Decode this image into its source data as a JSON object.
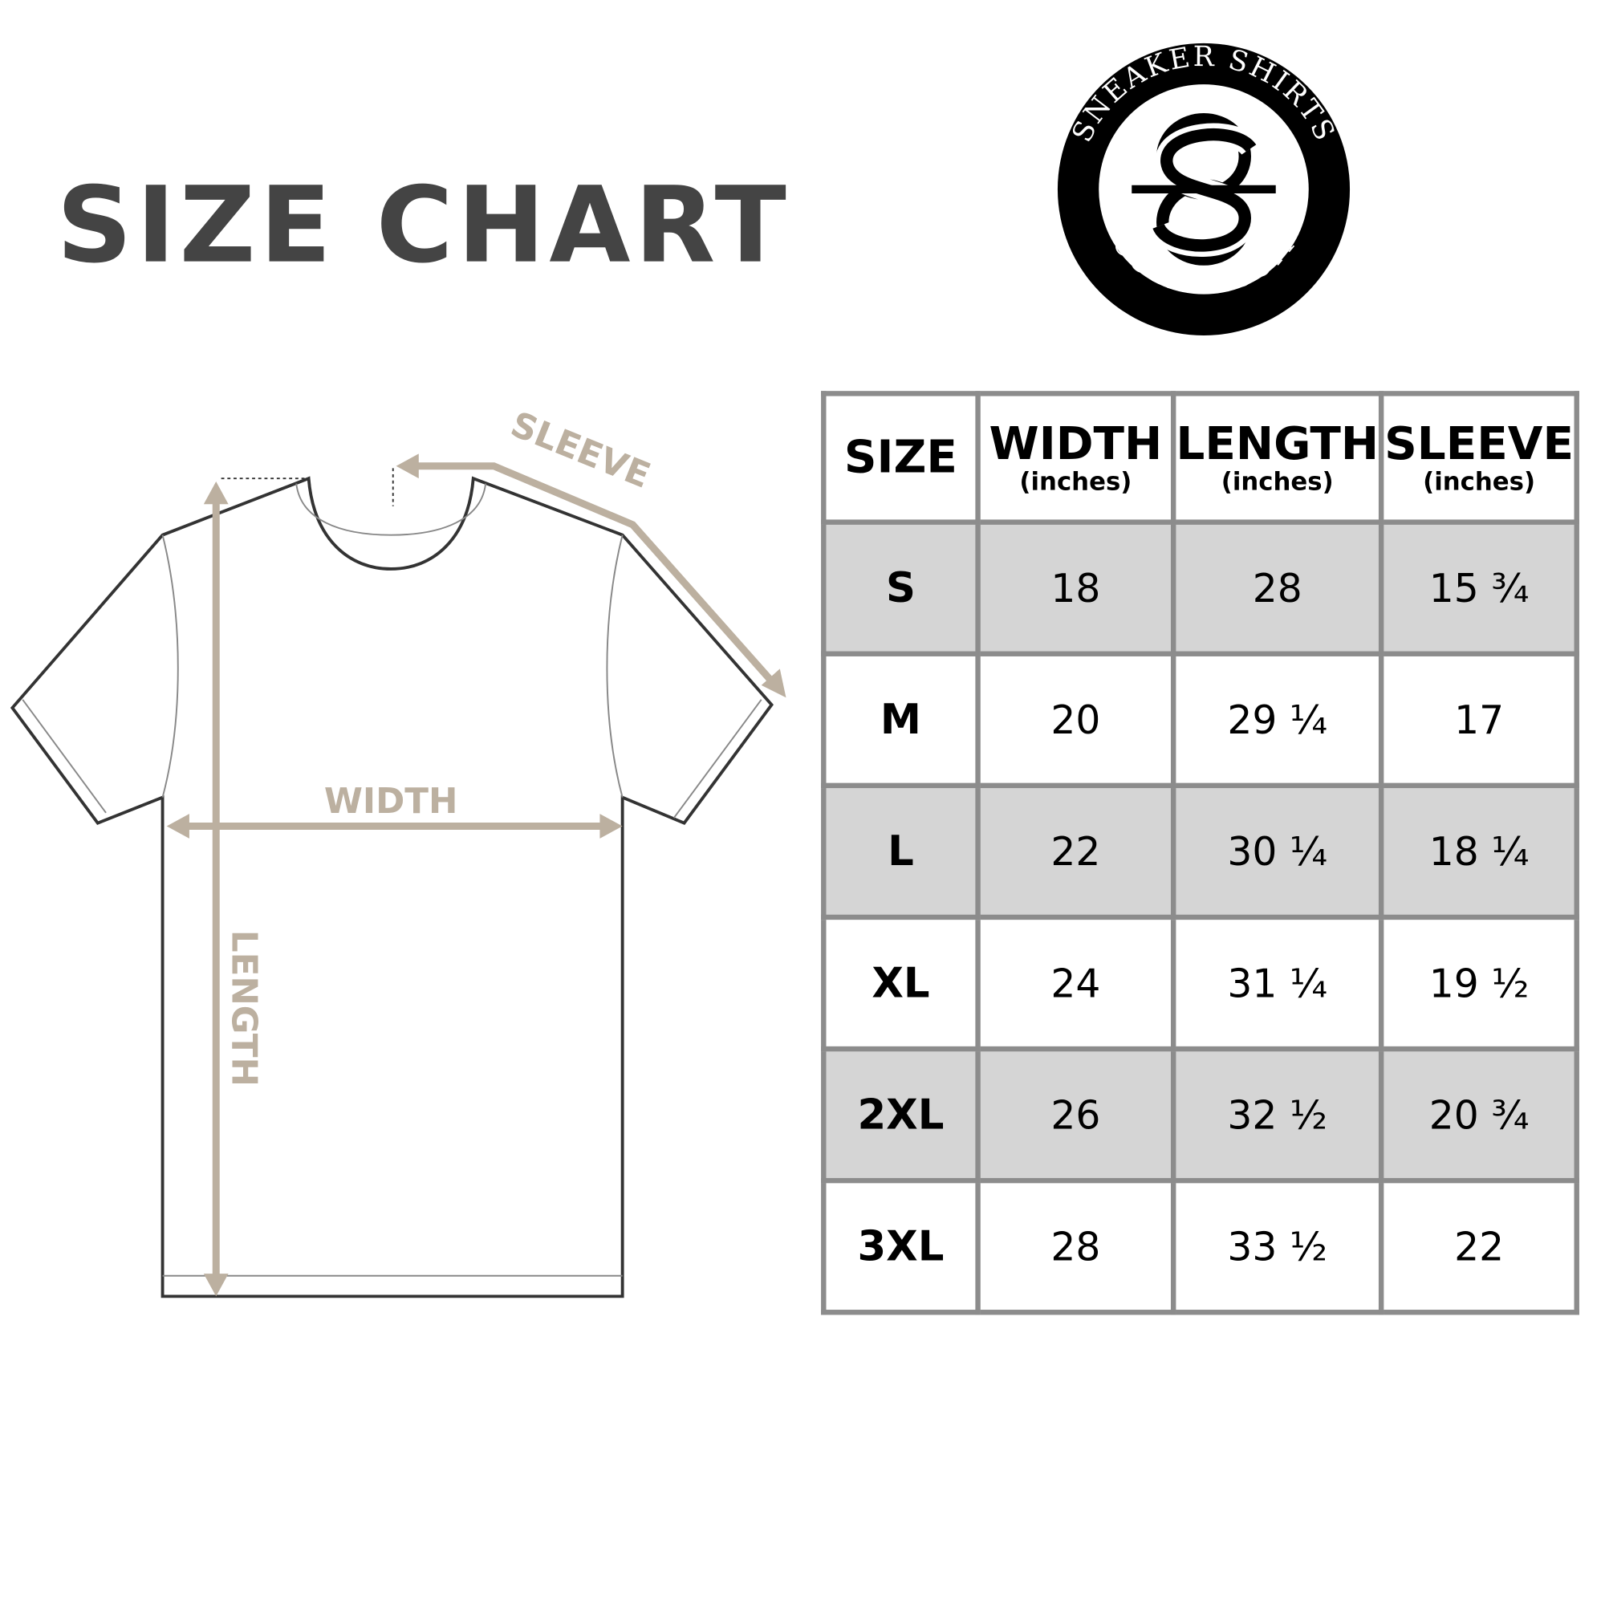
{
  "title": "SIZE CHART",
  "logo": {
    "top_text": "SNEAKER SHIRTS",
    "bottom_text": "OUTLET.COM",
    "monogram": "SO"
  },
  "diagram": {
    "sleeve_label": "SLEEVE",
    "width_label": "WIDTH",
    "length_label": "LENGTH",
    "arrow_color": "#bcb0a0"
  },
  "table": {
    "headers": [
      {
        "label": "SIZE",
        "unit": ""
      },
      {
        "label": "WIDTH",
        "unit": "(inches)"
      },
      {
        "label": "LENGTH",
        "unit": "(inches)"
      },
      {
        "label": "SLEEVE",
        "unit": "(inches)"
      }
    ],
    "rows": [
      [
        "S",
        "18",
        "28",
        "15 ¾"
      ],
      [
        "M",
        "20",
        "29 ¼",
        "17"
      ],
      [
        "L",
        "22",
        "30 ¼",
        "18 ¼"
      ],
      [
        "XL",
        "24",
        "31 ¼",
        "19 ½"
      ],
      [
        "2XL",
        "26",
        "32 ½",
        "20 ¾"
      ],
      [
        "3XL",
        "28",
        "33 ½",
        "22"
      ]
    ],
    "shade_color": "#d5d5d5",
    "border_color": "#8c8c8c"
  }
}
